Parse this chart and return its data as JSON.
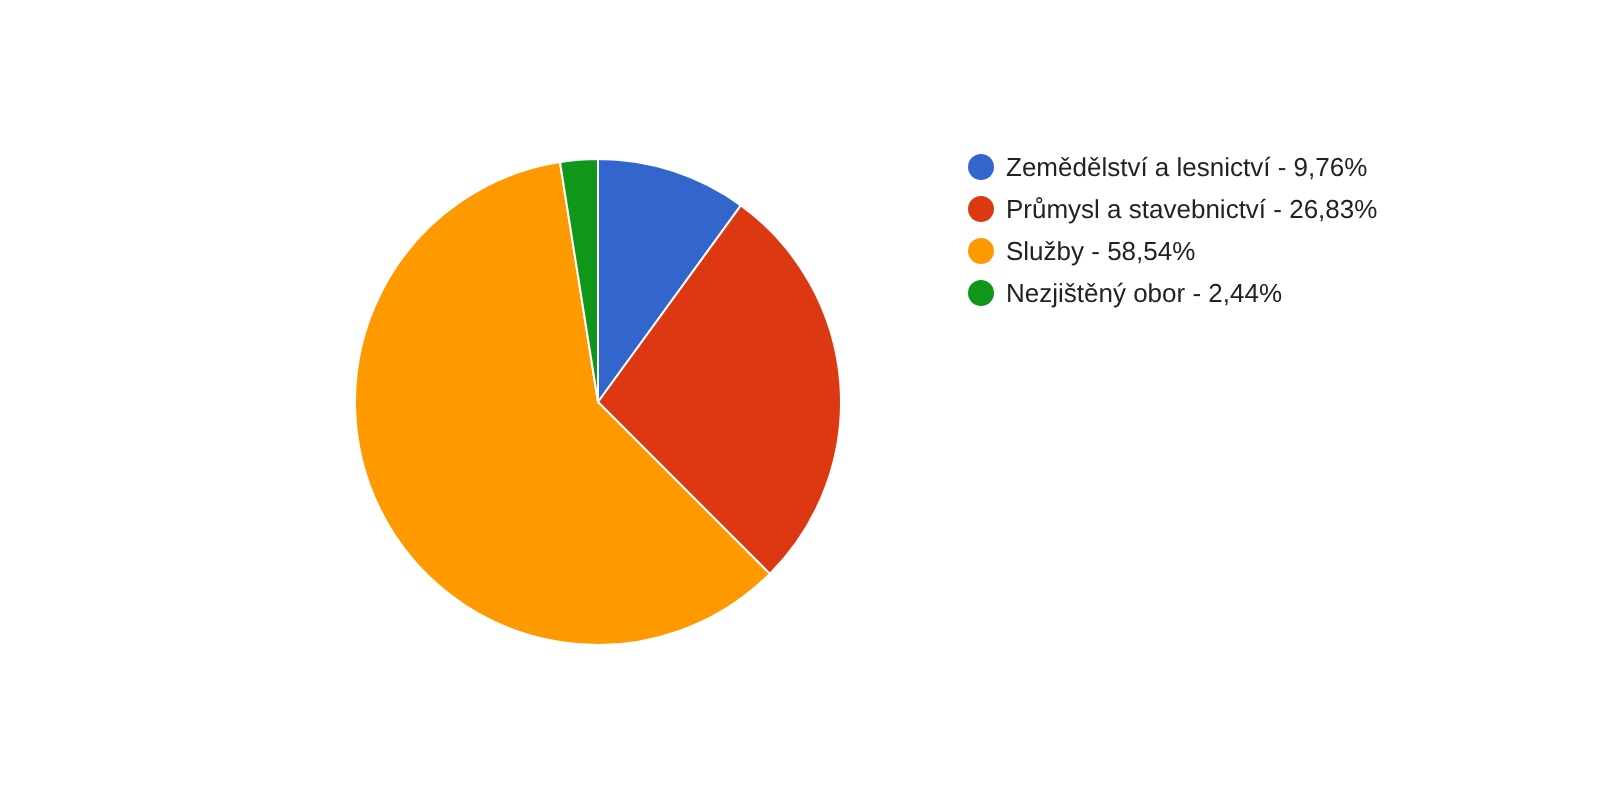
{
  "chart_data": {
    "type": "pie",
    "categories": [
      "Zemědělství a lesnictví",
      "Průmysl a stavebnictví",
      "Služby",
      "Nezjištěný obor"
    ],
    "values": [
      9.76,
      26.83,
      58.54,
      2.44
    ],
    "value_labels": [
      "9,76%",
      "26,83%",
      "58,54%",
      "2,44%"
    ],
    "colors": [
      "#3366cc",
      "#dc3912",
      "#ff9900",
      "#109618"
    ],
    "legend": "right"
  }
}
